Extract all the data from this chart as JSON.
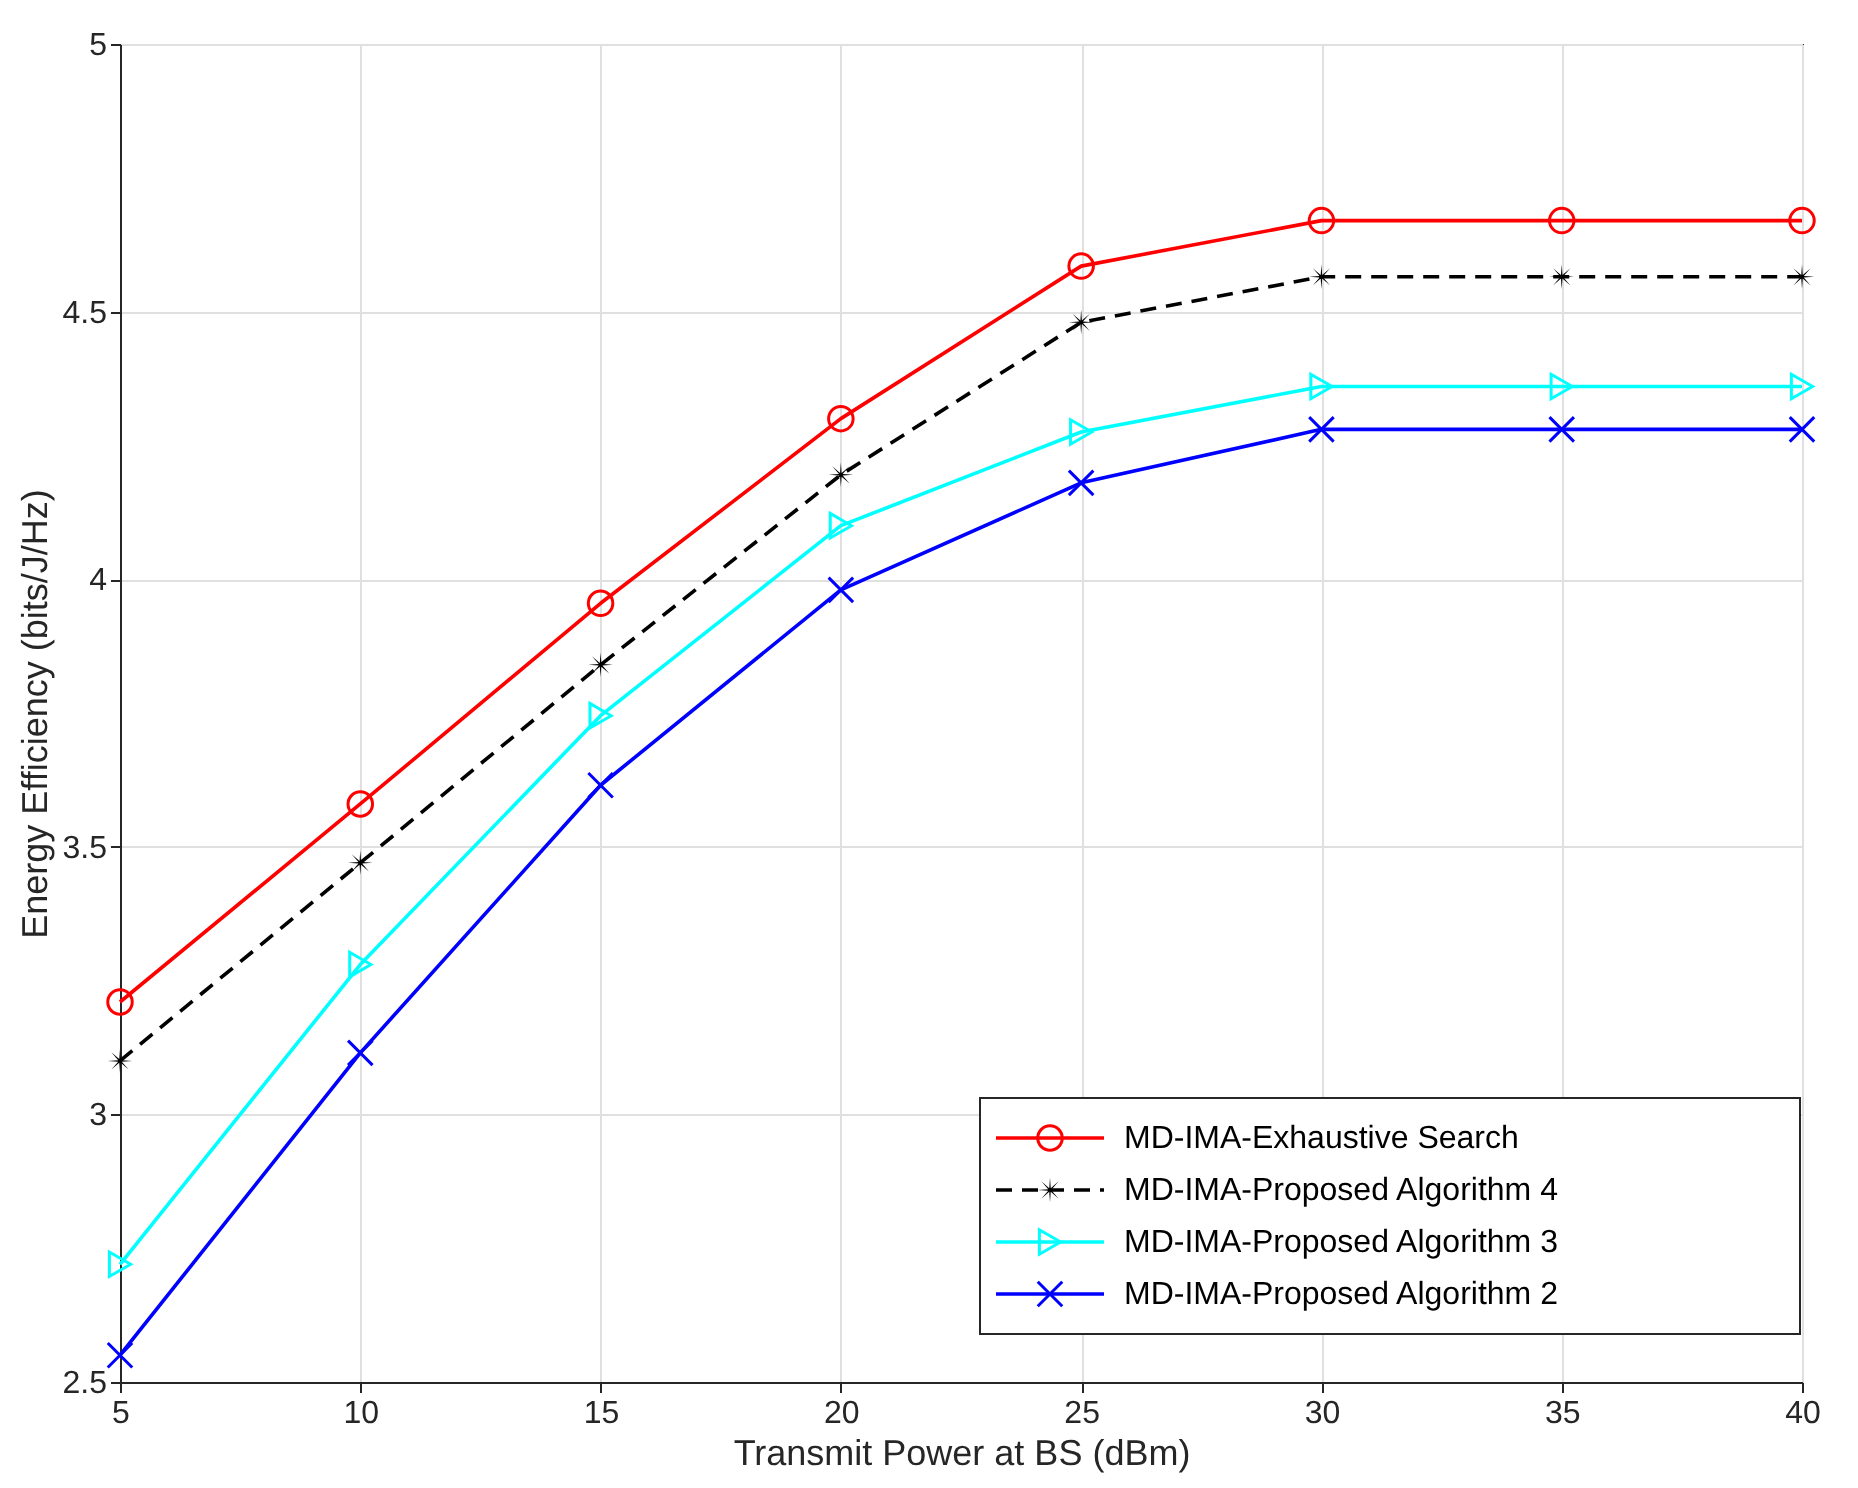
{
  "chart_data": {
    "type": "line",
    "xlabel": "Transmit Power at BS (dBm)",
    "ylabel": "Energy Efficiency (bits/J/Hz)",
    "x": [
      5,
      10,
      15,
      20,
      25,
      30,
      35,
      40
    ],
    "series": [
      {
        "name": "MD-IMA-Exhaustive Search",
        "color": "#ff0000",
        "marker": "circle",
        "line_style": "solid",
        "values": [
          3.21,
          3.58,
          3.955,
          4.3,
          4.585,
          4.67,
          4.67,
          4.67
        ]
      },
      {
        "name": "MD-IMA-Proposed Algorithm 4",
        "color": "#000000",
        "marker": "star",
        "line_style": "dashed",
        "values": [
          3.1,
          3.47,
          3.84,
          4.195,
          4.48,
          4.565,
          4.565,
          4.565
        ]
      },
      {
        "name": "MD-IMA-Proposed Algorithm 3",
        "color": "#00ffff",
        "marker": "triangle",
        "line_style": "solid",
        "values": [
          2.72,
          3.28,
          3.745,
          4.1,
          4.275,
          4.36,
          4.36,
          4.36
        ]
      },
      {
        "name": "MD-IMA-Proposed Algorithm 2",
        "color": "#0000ff",
        "marker": "cross",
        "line_style": "solid",
        "values": [
          2.55,
          3.115,
          3.615,
          3.98,
          4.18,
          4.28,
          4.28,
          4.28
        ]
      }
    ],
    "xlim": [
      5,
      40
    ],
    "xticks": [
      5,
      10,
      15,
      20,
      25,
      30,
      35,
      40
    ],
    "ylim": [
      2.5,
      5
    ],
    "yticks": [
      2.5,
      3,
      3.5,
      4,
      4.5,
      5
    ],
    "grid": true,
    "legend": "bottom right"
  }
}
